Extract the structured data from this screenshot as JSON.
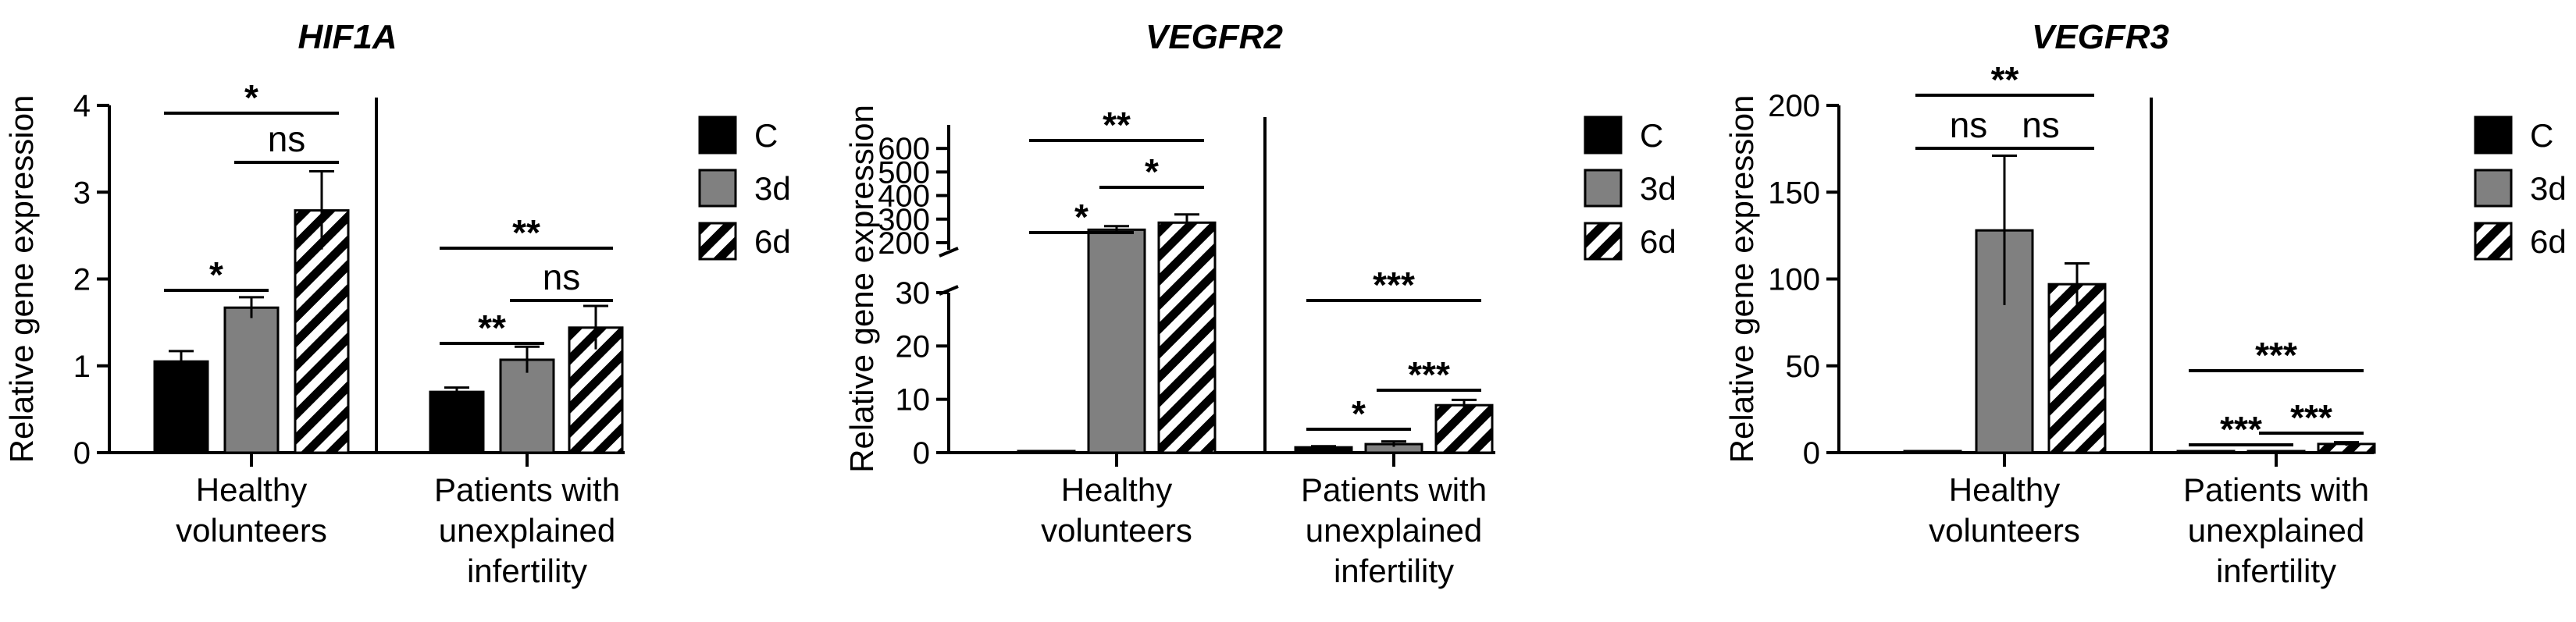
{
  "colors": {
    "C": "#000000",
    "3d": "#808080",
    "6d": "hatch",
    "axis": "#000000",
    "background": "#ffffff"
  },
  "chart_data": [
    {
      "type": "bar",
      "title": "HIF1A",
      "ylabel": "Relative gene expression",
      "xlabel": "",
      "ylim": [
        0,
        4
      ],
      "yticks": [
        "0",
        "1",
        "2",
        "3",
        "4"
      ],
      "groups": [
        [
          "Healthy",
          "volunteers"
        ],
        [
          "Patients with",
          "unexplained",
          "infertility"
        ]
      ],
      "legend": [
        "C",
        "3d",
        "6d"
      ],
      "series": [
        {
          "name": "C",
          "values": [
            1.05,
            0.7
          ],
          "errors": [
            0.12,
            0.05
          ]
        },
        {
          "name": "3d",
          "values": [
            1.67,
            1.07
          ],
          "errors": [
            0.12,
            0.15
          ]
        },
        {
          "name": "6d",
          "values": [
            2.79,
            1.44
          ],
          "errors": [
            0.45,
            0.25
          ]
        }
      ],
      "significance": [
        {
          "group": 0,
          "from": "C",
          "to": "3d",
          "label": "*"
        },
        {
          "group": 0,
          "from": "3d",
          "to": "6d",
          "label": "ns"
        },
        {
          "group": 0,
          "from": "C",
          "to": "6d",
          "label": "*"
        },
        {
          "group": 1,
          "from": "C",
          "to": "3d",
          "label": "**"
        },
        {
          "group": 1,
          "from": "3d",
          "to": "6d",
          "label": "ns"
        },
        {
          "group": 1,
          "from": "C",
          "to": "6d",
          "label": "**"
        }
      ]
    },
    {
      "type": "bar",
      "title": "VEGFR2",
      "ylabel": "Relative gene expression",
      "xlabel": "",
      "ylim": [
        0,
        700
      ],
      "axis_break": {
        "lower": [
          0,
          30
        ],
        "upper": [
          170,
          700
        ]
      },
      "yticks": [
        "0",
        "10",
        "20",
        "30",
        "200",
        "300",
        "400",
        "500",
        "600"
      ],
      "groups": [
        [
          "Healthy",
          "volunteers"
        ],
        [
          "Patients with",
          "unexplained",
          "infertility"
        ]
      ],
      "legend": [
        "C",
        "3d",
        "6d"
      ],
      "series": [
        {
          "name": "C",
          "values": [
            0.3,
            1.0
          ],
          "errors": [
            0,
            0.2
          ]
        },
        {
          "name": "3d",
          "values": [
            255,
            1.6
          ],
          "errors": [
            15,
            0.5
          ]
        },
        {
          "name": "6d",
          "values": [
            285,
            8.9
          ],
          "errors": [
            35,
            1.0
          ]
        }
      ],
      "significance": [
        {
          "group": 0,
          "from": "C",
          "to": "3d",
          "label": "*"
        },
        {
          "group": 0,
          "from": "3d",
          "to": "6d",
          "label": "*"
        },
        {
          "group": 0,
          "from": "C",
          "to": "6d",
          "label": "**"
        },
        {
          "group": 1,
          "from": "C",
          "to": "3d",
          "label": "*"
        },
        {
          "group": 1,
          "from": "3d",
          "to": "6d",
          "label": "***"
        },
        {
          "group": 1,
          "from": "C",
          "to": "6d",
          "label": "***"
        }
      ]
    },
    {
      "type": "bar",
      "title": "VEGFR3",
      "ylabel": "Relative gene expression",
      "xlabel": "",
      "ylim": [
        0,
        200
      ],
      "yticks": [
        "0",
        "50",
        "100",
        "150",
        "200"
      ],
      "groups": [
        [
          "Healthy",
          "volunteers"
        ],
        [
          "Patients with",
          "unexplained",
          "infertility"
        ]
      ],
      "legend": [
        "C",
        "3d",
        "6d"
      ],
      "series": [
        {
          "name": "C",
          "values": [
            0,
            0.8
          ],
          "errors": [
            0,
            0
          ]
        },
        {
          "name": "3d",
          "values": [
            128,
            0.5
          ],
          "errors": [
            43,
            0
          ]
        },
        {
          "name": "6d",
          "values": [
            97,
            5
          ],
          "errors": [
            12,
            1
          ]
        }
      ],
      "significance": [
        {
          "group": 0,
          "from": "C",
          "to": "3d",
          "label": "ns"
        },
        {
          "group": 0,
          "from": "3d",
          "to": "6d",
          "label": "ns"
        },
        {
          "group": 0,
          "from": "C",
          "to": "6d",
          "label": "**"
        },
        {
          "group": 1,
          "from": "C",
          "to": "3d",
          "label": "***"
        },
        {
          "group": 1,
          "from": "3d",
          "to": "6d",
          "label": "***"
        },
        {
          "group": 1,
          "from": "C",
          "to": "6d",
          "label": "***"
        }
      ]
    }
  ]
}
